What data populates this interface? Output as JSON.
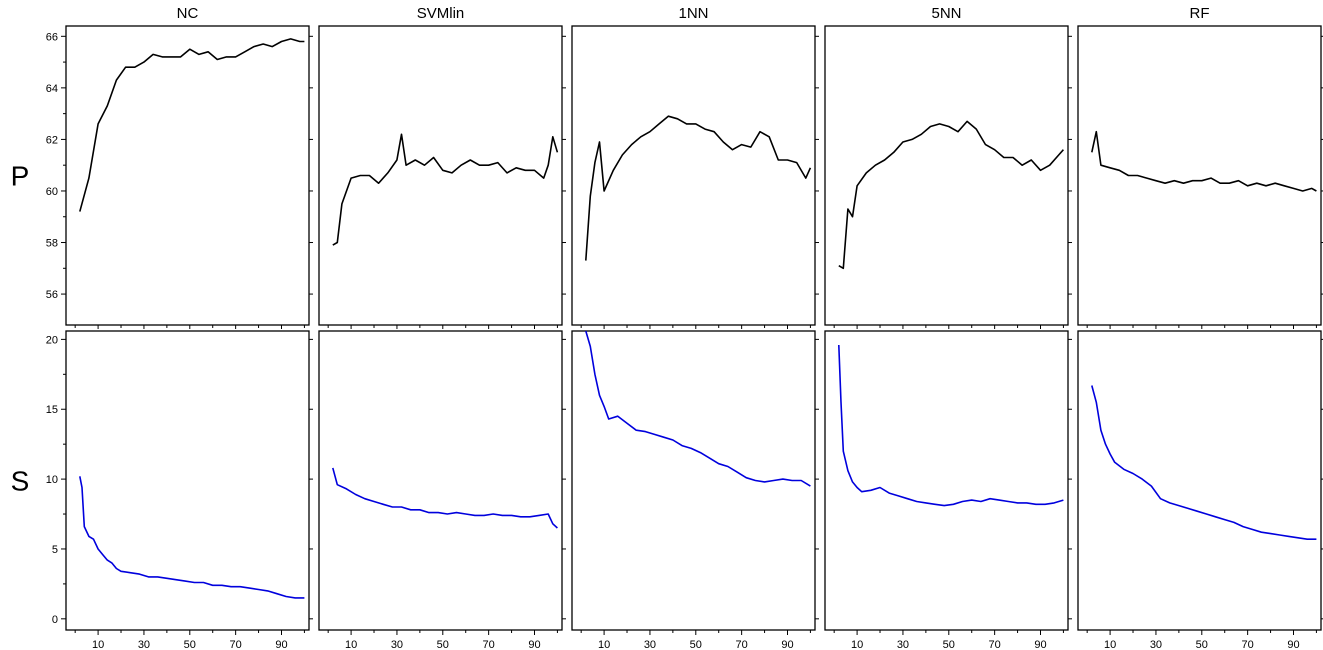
{
  "chart_data": {
    "type": "line",
    "columns": [
      "NC",
      "SVMlin",
      "1NN",
      "5NN",
      "RF"
    ],
    "rows": [
      {
        "label": "P",
        "color": "#000000",
        "ylim": [
          54.8,
          66.4
        ],
        "y_ticks": [
          56,
          58,
          60,
          62,
          64,
          66
        ],
        "y_tick_labels": [
          "56",
          "58",
          "60",
          "62",
          "64",
          "66"
        ]
      },
      {
        "label": "S",
        "color": "#0000dd",
        "ylim": [
          -0.8,
          20.6
        ],
        "y_ticks": [
          0,
          5,
          10,
          15,
          20
        ],
        "y_tick_labels": [
          "0",
          "5",
          "10",
          "15",
          "20"
        ]
      }
    ],
    "xlim": [
      -4,
      102
    ],
    "x_ticks": [
      10,
      30,
      50,
      70,
      90
    ],
    "x_tick_labels": [
      "10",
      "30",
      "50",
      "70",
      "90"
    ],
    "x_minor_ticks": [
      0,
      20,
      40,
      60,
      80,
      100
    ],
    "series": [
      {
        "row": "P",
        "column": "NC",
        "x": [
          2,
          6,
          10,
          14,
          18,
          22,
          26,
          30,
          34,
          38,
          42,
          46,
          50,
          54,
          58,
          62,
          66,
          70,
          74,
          78,
          82,
          86,
          90,
          94,
          98,
          100
        ],
        "y": [
          59.2,
          60.5,
          62.6,
          63.3,
          64.3,
          64.8,
          64.8,
          65.0,
          65.3,
          65.2,
          65.2,
          65.2,
          65.5,
          65.3,
          65.4,
          65.1,
          65.2,
          65.2,
          65.4,
          65.6,
          65.7,
          65.6,
          65.8,
          65.9,
          65.8,
          65.8
        ]
      },
      {
        "row": "P",
        "column": "SVMlin",
        "x": [
          2,
          4,
          6,
          10,
          14,
          18,
          22,
          26,
          30,
          32,
          34,
          38,
          42,
          46,
          50,
          54,
          58,
          62,
          66,
          70,
          74,
          78,
          82,
          86,
          90,
          94,
          96,
          98,
          100
        ],
        "y": [
          57.9,
          58.0,
          59.5,
          60.5,
          60.6,
          60.6,
          60.3,
          60.7,
          61.2,
          62.2,
          61.0,
          61.2,
          61.0,
          61.3,
          60.8,
          60.7,
          61.0,
          61.2,
          61.0,
          61.0,
          61.1,
          60.7,
          60.9,
          60.8,
          60.8,
          60.5,
          61.0,
          62.1,
          61.5
        ]
      },
      {
        "row": "P",
        "column": "1NN",
        "x": [
          2,
          4,
          6,
          8,
          10,
          14,
          18,
          22,
          26,
          30,
          34,
          38,
          42,
          46,
          50,
          54,
          58,
          62,
          66,
          70,
          74,
          78,
          82,
          86,
          90,
          94,
          98,
          100
        ],
        "y": [
          57.3,
          59.8,
          61.1,
          61.9,
          60.0,
          60.8,
          61.4,
          61.8,
          62.1,
          62.3,
          62.6,
          62.9,
          62.8,
          62.6,
          62.6,
          62.4,
          62.3,
          61.9,
          61.6,
          61.8,
          61.7,
          62.3,
          62.1,
          61.2,
          61.2,
          61.1,
          60.5,
          60.9
        ]
      },
      {
        "row": "P",
        "column": "5NN",
        "x": [
          2,
          4,
          6,
          8,
          10,
          14,
          18,
          22,
          26,
          30,
          34,
          38,
          42,
          46,
          50,
          54,
          58,
          62,
          66,
          70,
          74,
          78,
          82,
          86,
          90,
          94,
          98,
          100
        ],
        "y": [
          57.1,
          57.0,
          59.3,
          59.0,
          60.2,
          60.7,
          61.0,
          61.2,
          61.5,
          61.9,
          62.0,
          62.2,
          62.5,
          62.6,
          62.5,
          62.3,
          62.7,
          62.4,
          61.8,
          61.6,
          61.3,
          61.3,
          61.0,
          61.2,
          60.8,
          61.0,
          61.4,
          61.6
        ]
      },
      {
        "row": "P",
        "column": "RF",
        "x": [
          2,
          4,
          6,
          10,
          14,
          18,
          22,
          26,
          30,
          34,
          38,
          42,
          46,
          50,
          54,
          58,
          62,
          66,
          70,
          74,
          78,
          82,
          86,
          90,
          94,
          98,
          100
        ],
        "y": [
          61.5,
          62.3,
          61.0,
          60.9,
          60.8,
          60.6,
          60.6,
          60.5,
          60.4,
          60.3,
          60.4,
          60.3,
          60.4,
          60.4,
          60.5,
          60.3,
          60.3,
          60.4,
          60.2,
          60.3,
          60.2,
          60.3,
          60.2,
          60.1,
          60.0,
          60.1,
          60.0
        ]
      },
      {
        "row": "S",
        "column": "NC",
        "x": [
          2,
          3,
          4,
          6,
          8,
          10,
          12,
          14,
          16,
          18,
          20,
          24,
          28,
          32,
          36,
          40,
          44,
          48,
          52,
          56,
          60,
          64,
          68,
          72,
          76,
          80,
          84,
          88,
          92,
          96,
          100
        ],
        "y": [
          10.2,
          9.4,
          6.6,
          5.9,
          5.7,
          5.0,
          4.6,
          4.2,
          4.0,
          3.6,
          3.4,
          3.3,
          3.2,
          3.0,
          3.0,
          2.9,
          2.8,
          2.7,
          2.6,
          2.6,
          2.4,
          2.4,
          2.3,
          2.3,
          2.2,
          2.1,
          2.0,
          1.8,
          1.6,
          1.5,
          1.5
        ]
      },
      {
        "row": "S",
        "column": "SVMlin",
        "x": [
          2,
          4,
          8,
          12,
          16,
          20,
          24,
          28,
          32,
          36,
          40,
          44,
          48,
          52,
          56,
          60,
          64,
          68,
          72,
          76,
          80,
          84,
          88,
          92,
          96,
          98,
          100
        ],
        "y": [
          10.8,
          9.6,
          9.3,
          8.9,
          8.6,
          8.4,
          8.2,
          8.0,
          8.0,
          7.8,
          7.8,
          7.6,
          7.6,
          7.5,
          7.6,
          7.5,
          7.4,
          7.4,
          7.5,
          7.4,
          7.4,
          7.3,
          7.3,
          7.4,
          7.5,
          6.8,
          6.5
        ]
      },
      {
        "row": "S",
        "column": "1NN",
        "x": [
          2,
          4,
          6,
          8,
          10,
          12,
          16,
          20,
          24,
          28,
          32,
          36,
          40,
          44,
          48,
          52,
          56,
          60,
          64,
          68,
          72,
          76,
          80,
          84,
          88,
          92,
          96,
          100
        ],
        "y": [
          20.6,
          19.5,
          17.5,
          16.0,
          15.2,
          14.3,
          14.5,
          14.0,
          13.5,
          13.4,
          13.2,
          13.0,
          12.8,
          12.4,
          12.2,
          11.9,
          11.5,
          11.1,
          10.9,
          10.5,
          10.1,
          9.9,
          9.8,
          9.9,
          10.0,
          9.9,
          9.9,
          9.5
        ]
      },
      {
        "row": "S",
        "column": "5NN",
        "x": [
          2,
          3,
          4,
          6,
          8,
          10,
          12,
          16,
          20,
          24,
          28,
          32,
          36,
          40,
          44,
          48,
          52,
          56,
          60,
          64,
          68,
          72,
          76,
          80,
          84,
          88,
          92,
          96,
          100
        ],
        "y": [
          19.6,
          15.5,
          12.0,
          10.6,
          9.8,
          9.4,
          9.1,
          9.2,
          9.4,
          9.0,
          8.8,
          8.6,
          8.4,
          8.3,
          8.2,
          8.1,
          8.2,
          8.4,
          8.5,
          8.4,
          8.6,
          8.5,
          8.4,
          8.3,
          8.3,
          8.2,
          8.2,
          8.3,
          8.5
        ]
      },
      {
        "row": "S",
        "column": "RF",
        "x": [
          2,
          4,
          6,
          8,
          10,
          12,
          16,
          20,
          24,
          28,
          32,
          36,
          40,
          44,
          48,
          52,
          56,
          60,
          64,
          68,
          72,
          76,
          80,
          84,
          88,
          92,
          96,
          100
        ],
        "y": [
          16.7,
          15.5,
          13.5,
          12.5,
          11.8,
          11.2,
          10.7,
          10.4,
          10.0,
          9.5,
          8.6,
          8.3,
          8.1,
          7.9,
          7.7,
          7.5,
          7.3,
          7.1,
          6.9,
          6.6,
          6.4,
          6.2,
          6.1,
          6.0,
          5.9,
          5.8,
          5.7,
          5.7
        ]
      }
    ]
  }
}
